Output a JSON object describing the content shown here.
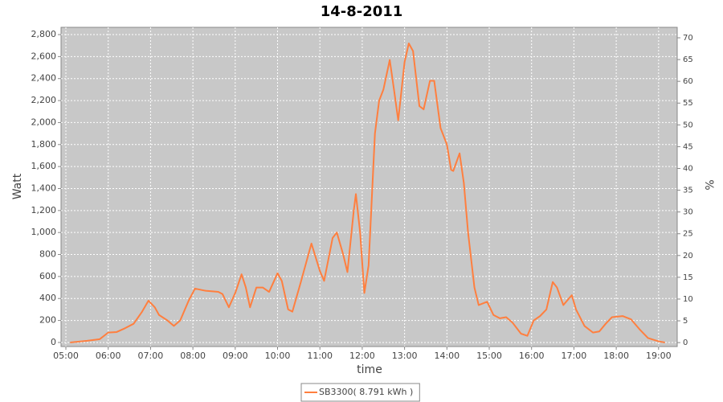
{
  "chart_data": {
    "type": "line",
    "title": "14-8-2011",
    "x_label": "time",
    "y_label": "Watt",
    "y2_label": "%",
    "x": [
      5.1,
      5.5,
      5.8,
      6.0,
      6.2,
      6.4,
      6.6,
      6.8,
      6.95,
      7.1,
      7.2,
      7.4,
      7.55,
      7.7,
      7.9,
      8.05,
      8.3,
      8.6,
      8.7,
      8.85,
      9.0,
      9.15,
      9.25,
      9.35,
      9.5,
      9.65,
      9.8,
      10.0,
      10.1,
      10.25,
      10.35,
      10.55,
      10.8,
      11.0,
      11.1,
      11.3,
      11.4,
      11.55,
      11.65,
      11.8,
      11.85,
      11.95,
      12.05,
      12.15,
      12.3,
      12.4,
      12.5,
      12.65,
      12.75,
      12.85,
      13.0,
      13.1,
      13.2,
      13.35,
      13.45,
      13.6,
      13.7,
      13.85,
      14.0,
      14.1,
      14.15,
      14.3,
      14.4,
      14.5,
      14.65,
      14.75,
      14.95,
      15.1,
      15.25,
      15.4,
      15.55,
      15.75,
      15.9,
      16.05,
      16.2,
      16.35,
      16.5,
      16.6,
      16.75,
      16.95,
      17.05,
      17.25,
      17.45,
      17.6,
      17.75,
      17.9,
      18.15,
      18.35,
      18.55,
      18.75,
      19.0,
      19.15
    ],
    "series": [
      {
        "name": "SB3300( 8.791 kWh )",
        "color": "#ff7f3f",
        "values": [
          0,
          15,
          30,
          90,
          95,
          130,
          170,
          280,
          380,
          320,
          250,
          200,
          150,
          200,
          380,
          490,
          470,
          460,
          440,
          320,
          450,
          620,
          500,
          320,
          500,
          500,
          460,
          630,
          560,
          300,
          280,
          550,
          900,
          650,
          560,
          950,
          1000,
          800,
          640,
          1200,
          1350,
          1000,
          450,
          700,
          1900,
          2200,
          2300,
          2570,
          2300,
          2020,
          2550,
          2720,
          2650,
          2150,
          2120,
          2380,
          2380,
          1950,
          1800,
          1570,
          1560,
          1720,
          1450,
          1000,
          500,
          340,
          370,
          250,
          220,
          230,
          180,
          80,
          60,
          200,
          240,
          300,
          550,
          500,
          340,
          430,
          300,
          150,
          90,
          100,
          170,
          230,
          240,
          210,
          120,
          40,
          10,
          0
        ]
      }
    ],
    "xlim": [
      4.886,
      19.44
    ],
    "xticks": [
      {
        "value": 5,
        "label": "05:00"
      },
      {
        "value": 6,
        "label": "06:00"
      },
      {
        "value": 7,
        "label": "07:00"
      },
      {
        "value": 8,
        "label": "08:00"
      },
      {
        "value": 9,
        "label": "09:00"
      },
      {
        "value": 10,
        "label": "10:00"
      },
      {
        "value": 11,
        "label": "11:00"
      },
      {
        "value": 12,
        "label": "12:00"
      },
      {
        "value": 13,
        "label": "13:00"
      },
      {
        "value": 14,
        "label": "14:00"
      },
      {
        "value": 15,
        "label": "15:00"
      },
      {
        "value": 16,
        "label": "16:00"
      },
      {
        "value": 17,
        "label": "17:00"
      },
      {
        "value": 18,
        "label": "18:00"
      },
      {
        "value": 19,
        "label": "19:00"
      }
    ],
    "ylim": [
      -37,
      2866
    ],
    "yticks": [
      0,
      200,
      400,
      600,
      800,
      {
        "value": 1000,
        "label": "1,000"
      },
      {
        "value": 1200,
        "label": "1,200"
      },
      {
        "value": 1400,
        "label": "1,400"
      },
      {
        "value": 1600,
        "label": "1,600"
      },
      {
        "value": 1800,
        "label": "1,800"
      },
      {
        "value": 2000,
        "label": "2,000"
      },
      {
        "value": 2200,
        "label": "2,200"
      },
      {
        "value": 2400,
        "label": "2,400"
      },
      {
        "value": 2600,
        "label": "2,600"
      },
      {
        "value": 2800,
        "label": "2,800"
      }
    ],
    "y2lim": [
      -0.9,
      72.4
    ],
    "y2ticks": [
      0,
      5,
      10,
      15,
      20,
      25,
      30,
      35,
      40,
      45,
      50,
      55,
      60,
      65,
      70
    ],
    "grid": true,
    "legend": "bottom"
  }
}
